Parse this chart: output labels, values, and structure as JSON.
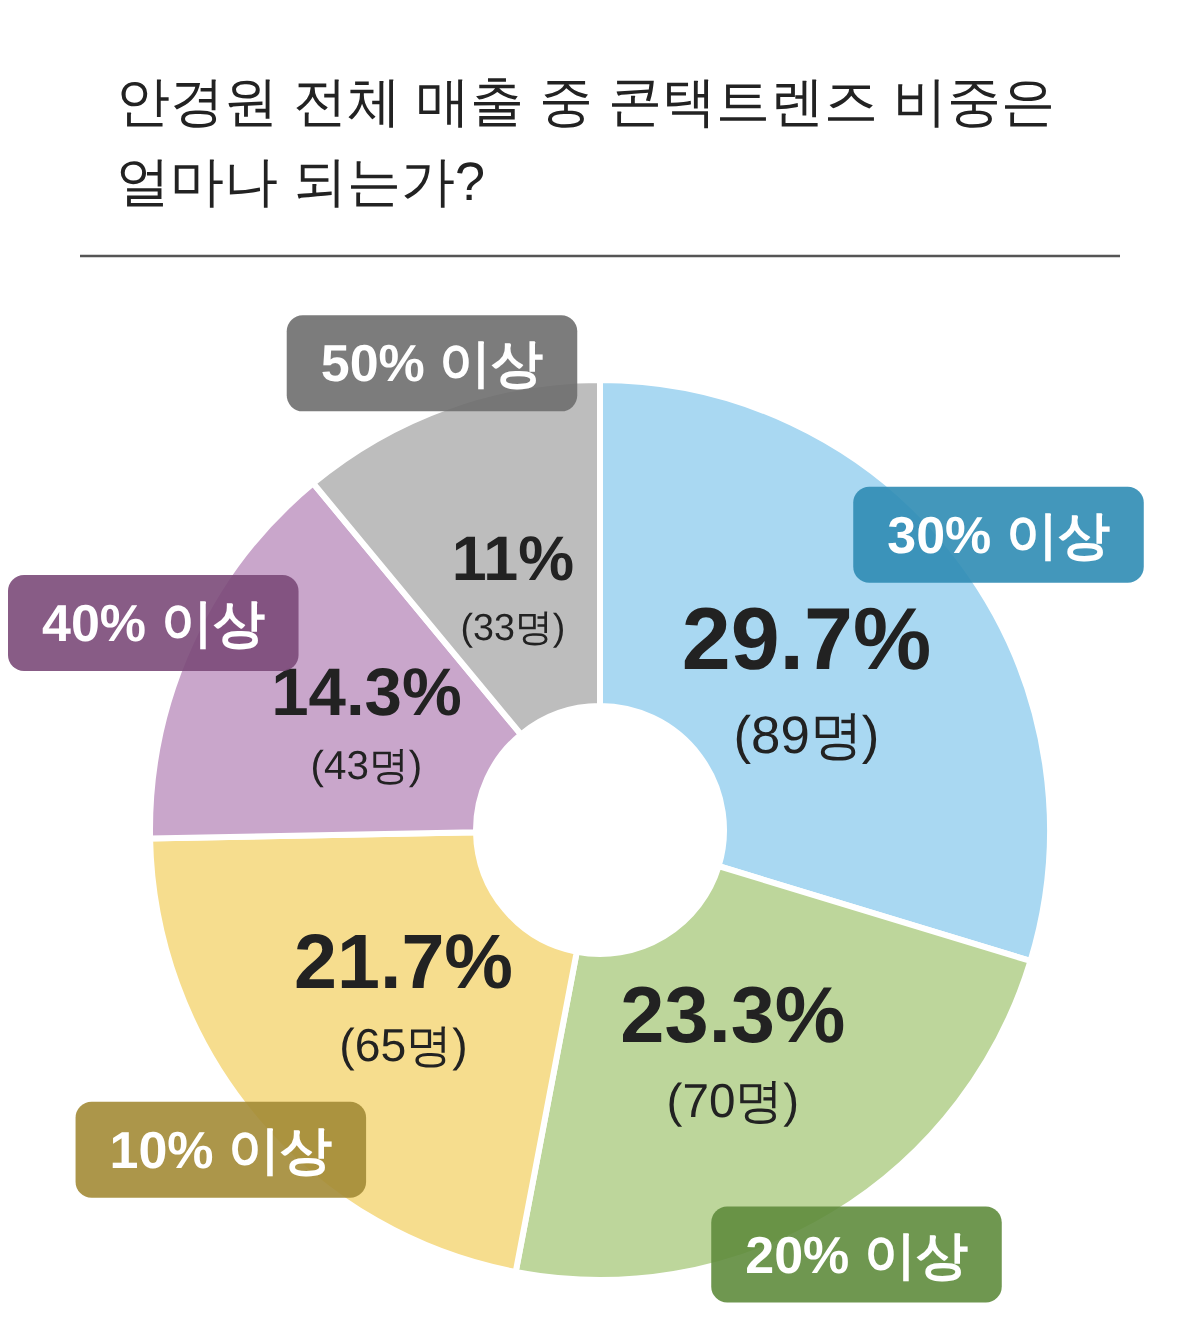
{
  "chart_data": {
    "type": "donut",
    "title": "안경원 전체 매출 중 콘택트렌즈 비중은 얼마나 되는가?",
    "categories": [
      "30% 이상",
      "20% 이상",
      "10% 이상",
      "40% 이상",
      "50% 이상"
    ],
    "values": [
      29.7,
      23.3,
      21.7,
      14.3,
      11
    ],
    "colors": [
      "#a9d8f2",
      "#bdd69b",
      "#f6dd8e",
      "#c9a6cb",
      "#bdbdbd"
    ],
    "value_labels": [
      "29.7%\n(89명)",
      "23.3%\n(70명)",
      "21.7%\n(65명)",
      "14.3%\n(43명)",
      "11%\n(33명)"
    ]
  }
}
